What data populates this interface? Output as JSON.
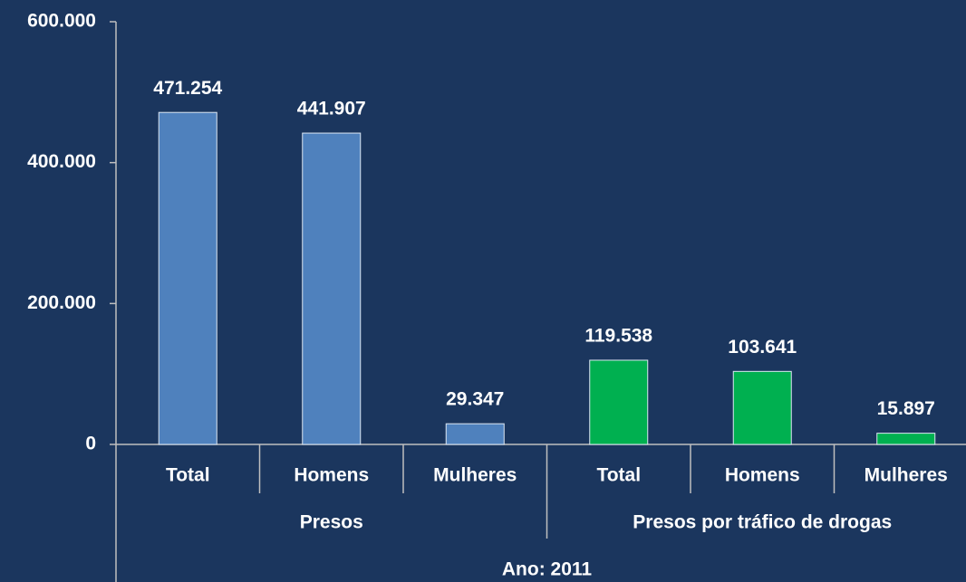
{
  "chart_data": {
    "type": "bar",
    "categories": [
      "Total",
      "Homens",
      "Mulheres",
      "Total",
      "Homens",
      "Mulheres"
    ],
    "groups": [
      {
        "name": "Presos",
        "span": 3
      },
      {
        "name": "Presos por tráfico de drogas",
        "span": 3
      }
    ],
    "x_label": "Ano: 2011",
    "values": [
      471254,
      441907,
      29347,
      119538,
      103641,
      15897
    ],
    "value_labels": [
      "471.254",
      "441.907",
      "29.347",
      "119.538",
      "103.641",
      "15.897"
    ],
    "colors": [
      "#4f81bd",
      "#4f81bd",
      "#4f81bd",
      "#00b050",
      "#00b050",
      "#00b050"
    ],
    "ylim": [
      0,
      600000
    ],
    "yticks": [
      {
        "value": 0,
        "label": "0"
      },
      {
        "value": 200000,
        "label": "200.000"
      },
      {
        "value": 400000,
        "label": "400.000"
      },
      {
        "value": 600000,
        "label": "600.000"
      }
    ]
  }
}
